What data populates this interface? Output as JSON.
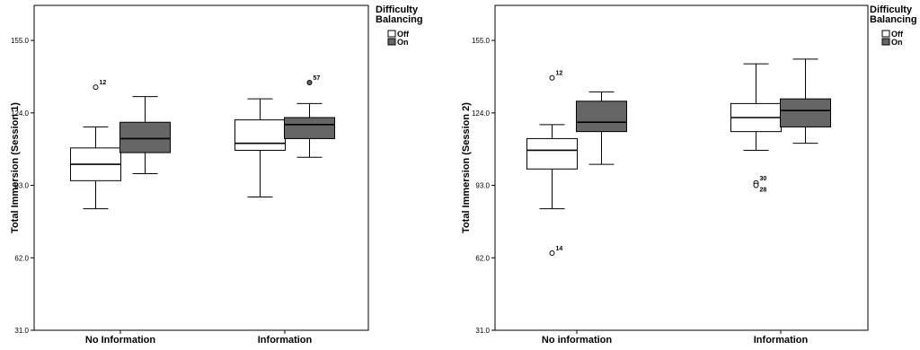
{
  "chart_data": [
    {
      "type": "boxplot",
      "ylabel": "Total Immersion (Session 1)",
      "ylim": [
        31,
        170
      ],
      "yticks": [
        31,
        62,
        93,
        124,
        155
      ],
      "ytick_labels": [
        "31.0",
        "62.0",
        "93.0",
        "124.0",
        "155.0"
      ],
      "categories": [
        "No Information",
        "Information"
      ],
      "legend": {
        "title_lines": [
          "Difficulty",
          "Balancing"
        ],
        "entries": [
          "Off",
          "On"
        ],
        "colors": [
          "#ffffff",
          "#666666"
        ],
        "placement": "right"
      },
      "series": [
        {
          "name": "Off",
          "color": "#ffffff",
          "boxes": [
            {
              "min": 83,
              "q1": 95,
              "median": 102,
              "q3": 109,
              "max": 118,
              "outliers": [
                {
                  "value": 135,
                  "label": "12",
                  "type": "circle"
                }
              ]
            },
            {
              "min": 88,
              "q1": 108,
              "median": 111,
              "q3": 121,
              "max": 130,
              "outliers": []
            }
          ]
        },
        {
          "name": "On",
          "color": "#666666",
          "boxes": [
            {
              "min": 98,
              "q1": 107,
              "median": 113,
              "q3": 120,
              "max": 131,
              "outliers": []
            },
            {
              "min": 105,
              "q1": 113,
              "median": 119,
              "q3": 122,
              "max": 128,
              "outliers": [
                {
                  "value": 137,
                  "label": "57",
                  "type": "filled"
                }
              ]
            }
          ]
        }
      ]
    },
    {
      "type": "boxplot",
      "ylabel": "Total Immersion (Session 2)",
      "ylim": [
        31,
        170
      ],
      "yticks": [
        31,
        62,
        93,
        124,
        155
      ],
      "ytick_labels": [
        "31.0",
        "62.0",
        "93.0",
        "124.0",
        "155.0"
      ],
      "categories": [
        "No information",
        "Information"
      ],
      "legend": {
        "title_lines": [
          "Difficulty",
          "Balancing"
        ],
        "entries": [
          "Off",
          "On"
        ],
        "colors": [
          "#ffffff",
          "#666666"
        ],
        "placement": "right"
      },
      "series": [
        {
          "name": "Off",
          "color": "#ffffff",
          "boxes": [
            {
              "min": 83,
              "q1": 100,
              "median": 108,
              "q3": 113,
              "max": 119,
              "outliers": [
                {
                  "value": 139,
                  "label": "12",
                  "type": "circle"
                },
                {
                  "value": 64,
                  "label": "14",
                  "type": "circle"
                }
              ]
            },
            {
              "min": 108,
              "q1": 116,
              "median": 122,
              "q3": 128,
              "max": 145,
              "outliers": [
                {
                  "value": 94,
                  "label": "30",
                  "type": "circle"
                },
                {
                  "value": 93,
                  "label": "28",
                  "type": "circle"
                }
              ]
            }
          ]
        },
        {
          "name": "On",
          "color": "#666666",
          "boxes": [
            {
              "min": 102,
              "q1": 116,
              "median": 120,
              "q3": 129,
              "max": 133,
              "outliers": []
            },
            {
              "min": 111,
              "q1": 118,
              "median": 125,
              "q3": 130,
              "max": 147,
              "outliers": []
            }
          ]
        }
      ]
    }
  ]
}
